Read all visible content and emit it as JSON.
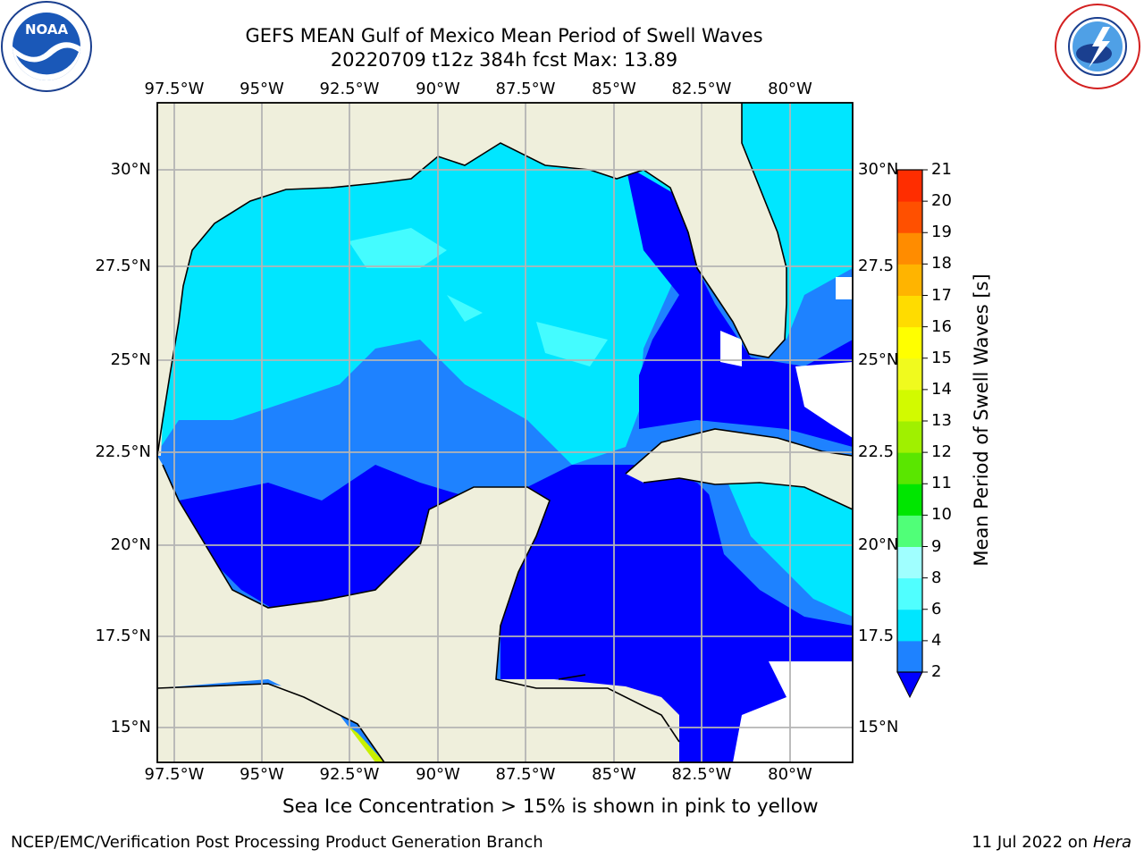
{
  "header": {
    "title_line1": "GEFS MEAN Gulf of Mexico Mean Period of Swell Waves",
    "title_line2": "20220709 t12z 384h fcst   Max: 13.89"
  },
  "logos": {
    "left": "noaa-logo",
    "right": "nws-logo"
  },
  "map": {
    "lon_labels": [
      "97.5°W",
      "95°W",
      "92.5°W",
      "90°W",
      "87.5°W",
      "85°W",
      "82.5°W",
      "80°W"
    ],
    "lat_labels_left": [
      "30°N",
      "27.5°N",
      "25°N",
      "22.5°N",
      "20°N",
      "17.5°N",
      "15°N"
    ],
    "lat_labels_right": [
      "30°N",
      "27.5",
      "25°N",
      "22.5",
      "20°N",
      "17.5",
      "15°N"
    ],
    "land_color": "#efefdc",
    "grid_color": "#b4b4b4"
  },
  "colorbar": {
    "title": "Mean Period of Swell Waves [s]",
    "ticks": [
      "2",
      "4",
      "6",
      "8",
      "9",
      "10",
      "11",
      "12",
      "13",
      "14",
      "15",
      "16",
      "17",
      "18",
      "19",
      "20",
      "21"
    ],
    "colors": [
      "#0000ff",
      "#1e82ff",
      "#00e6ff",
      "#50ffff",
      "#a0ffff",
      "#50ff78",
      "#00e600",
      "#5ae600",
      "#a0f000",
      "#d2fa00",
      "#f0fa1e",
      "#ffff00",
      "#ffdc00",
      "#ffb400",
      "#ff8c00",
      "#ff5000",
      "#ff2d00",
      "#ff0000"
    ]
  },
  "footer": {
    "note": "Sea Ice Concentration > 15% is shown in pink to yellow",
    "left": "NCEP/EMC/Verification Post Processing Product Generation Branch",
    "date": "11 Jul 2022 on ",
    "machine": "Hera"
  }
}
